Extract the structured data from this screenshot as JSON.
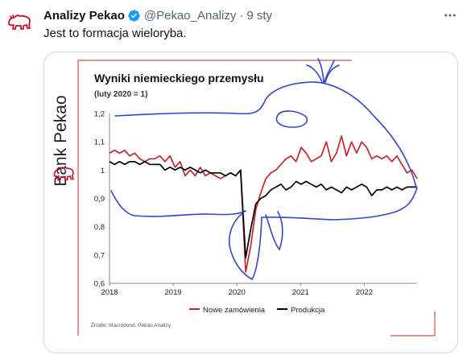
{
  "tweet": {
    "display_name": "Analizy Pekao",
    "handle": "@Pekao_Analizy",
    "separator": "·",
    "timestamp": "9 sty",
    "text": "Jest to formacja wieloryba.",
    "more_icon": "more-dots-icon",
    "verified_icon": "verified-badge-icon",
    "avatar_icon": "pekao-bison-logo",
    "colors": {
      "verified": "#1d9bf0",
      "brand_red": "#c8102e",
      "secondary_text": "#536471"
    }
  },
  "media": {
    "brand_text": "Bank Pekao",
    "source": "Źródło: Macrobond, Pekao Analizy",
    "annotation": "hand-drawn blue whale outline over chart",
    "colors": {
      "nowe": "#c0282d",
      "produkcja": "#000000",
      "whale": "#3545c8"
    }
  },
  "chart_data": {
    "type": "line",
    "title": "Wyniki niemieckiego przemysłu",
    "subtitle": "(luty 2020 = 1)",
    "xlabel": "",
    "ylabel": "",
    "ylim": [
      0.6,
      1.2
    ],
    "xlim": [
      2018.0,
      2022.83
    ],
    "y_ticks": [
      "0,6",
      "0,7",
      "0,8",
      "0,9",
      "1",
      "1,1",
      "1,2"
    ],
    "x_ticks": [
      "2018",
      "2019",
      "2020",
      "2021",
      "2022"
    ],
    "legend_position": "bottom",
    "grid": false,
    "series": [
      {
        "name": "Nowe zamówienia",
        "color": "#c0282d",
        "values": [
          1.06,
          1.07,
          1.06,
          1.07,
          1.05,
          1.06,
          1.04,
          1.03,
          1.04,
          1.04,
          1.05,
          1.03,
          1.05,
          1.01,
          1.03,
          0.98,
          1.0,
          0.98,
          1.01,
          0.98,
          0.99,
          0.98,
          0.97,
          0.98,
          0.99,
          0.98,
          1.0,
          0.64,
          0.73,
          0.86,
          0.92,
          0.97,
          0.99,
          1.0,
          1.02,
          1.04,
          1.05,
          1.03,
          1.08,
          1.06,
          1.03,
          1.04,
          1.05,
          1.1,
          1.03,
          1.06,
          1.12,
          1.05,
          1.1,
          1.06,
          1.1,
          1.08,
          1.04,
          1.05,
          1.04,
          1.05,
          1.03,
          1.05,
          1.02,
          0.99,
          1.0,
          0.97
        ]
      },
      {
        "name": "Produkcja",
        "color": "#000000",
        "values": [
          1.03,
          1.02,
          1.03,
          1.02,
          1.03,
          1.03,
          1.02,
          1.03,
          1.02,
          1.02,
          1.02,
          1.0,
          1.01,
          1.0,
          1.01,
          1.0,
          1.01,
          1.0,
          0.99,
          1.0,
          0.99,
          0.99,
          0.99,
          0.98,
          0.99,
          0.98,
          1.0,
          0.69,
          0.79,
          0.88,
          0.9,
          0.91,
          0.93,
          0.94,
          0.95,
          0.93,
          0.94,
          0.96,
          0.95,
          0.96,
          0.95,
          0.94,
          0.95,
          0.93,
          0.94,
          0.93,
          0.92,
          0.94,
          0.93,
          0.94,
          0.95,
          0.94,
          0.91,
          0.93,
          0.93,
          0.94,
          0.93,
          0.94,
          0.93,
          0.94,
          0.94,
          0.94
        ]
      }
    ]
  }
}
